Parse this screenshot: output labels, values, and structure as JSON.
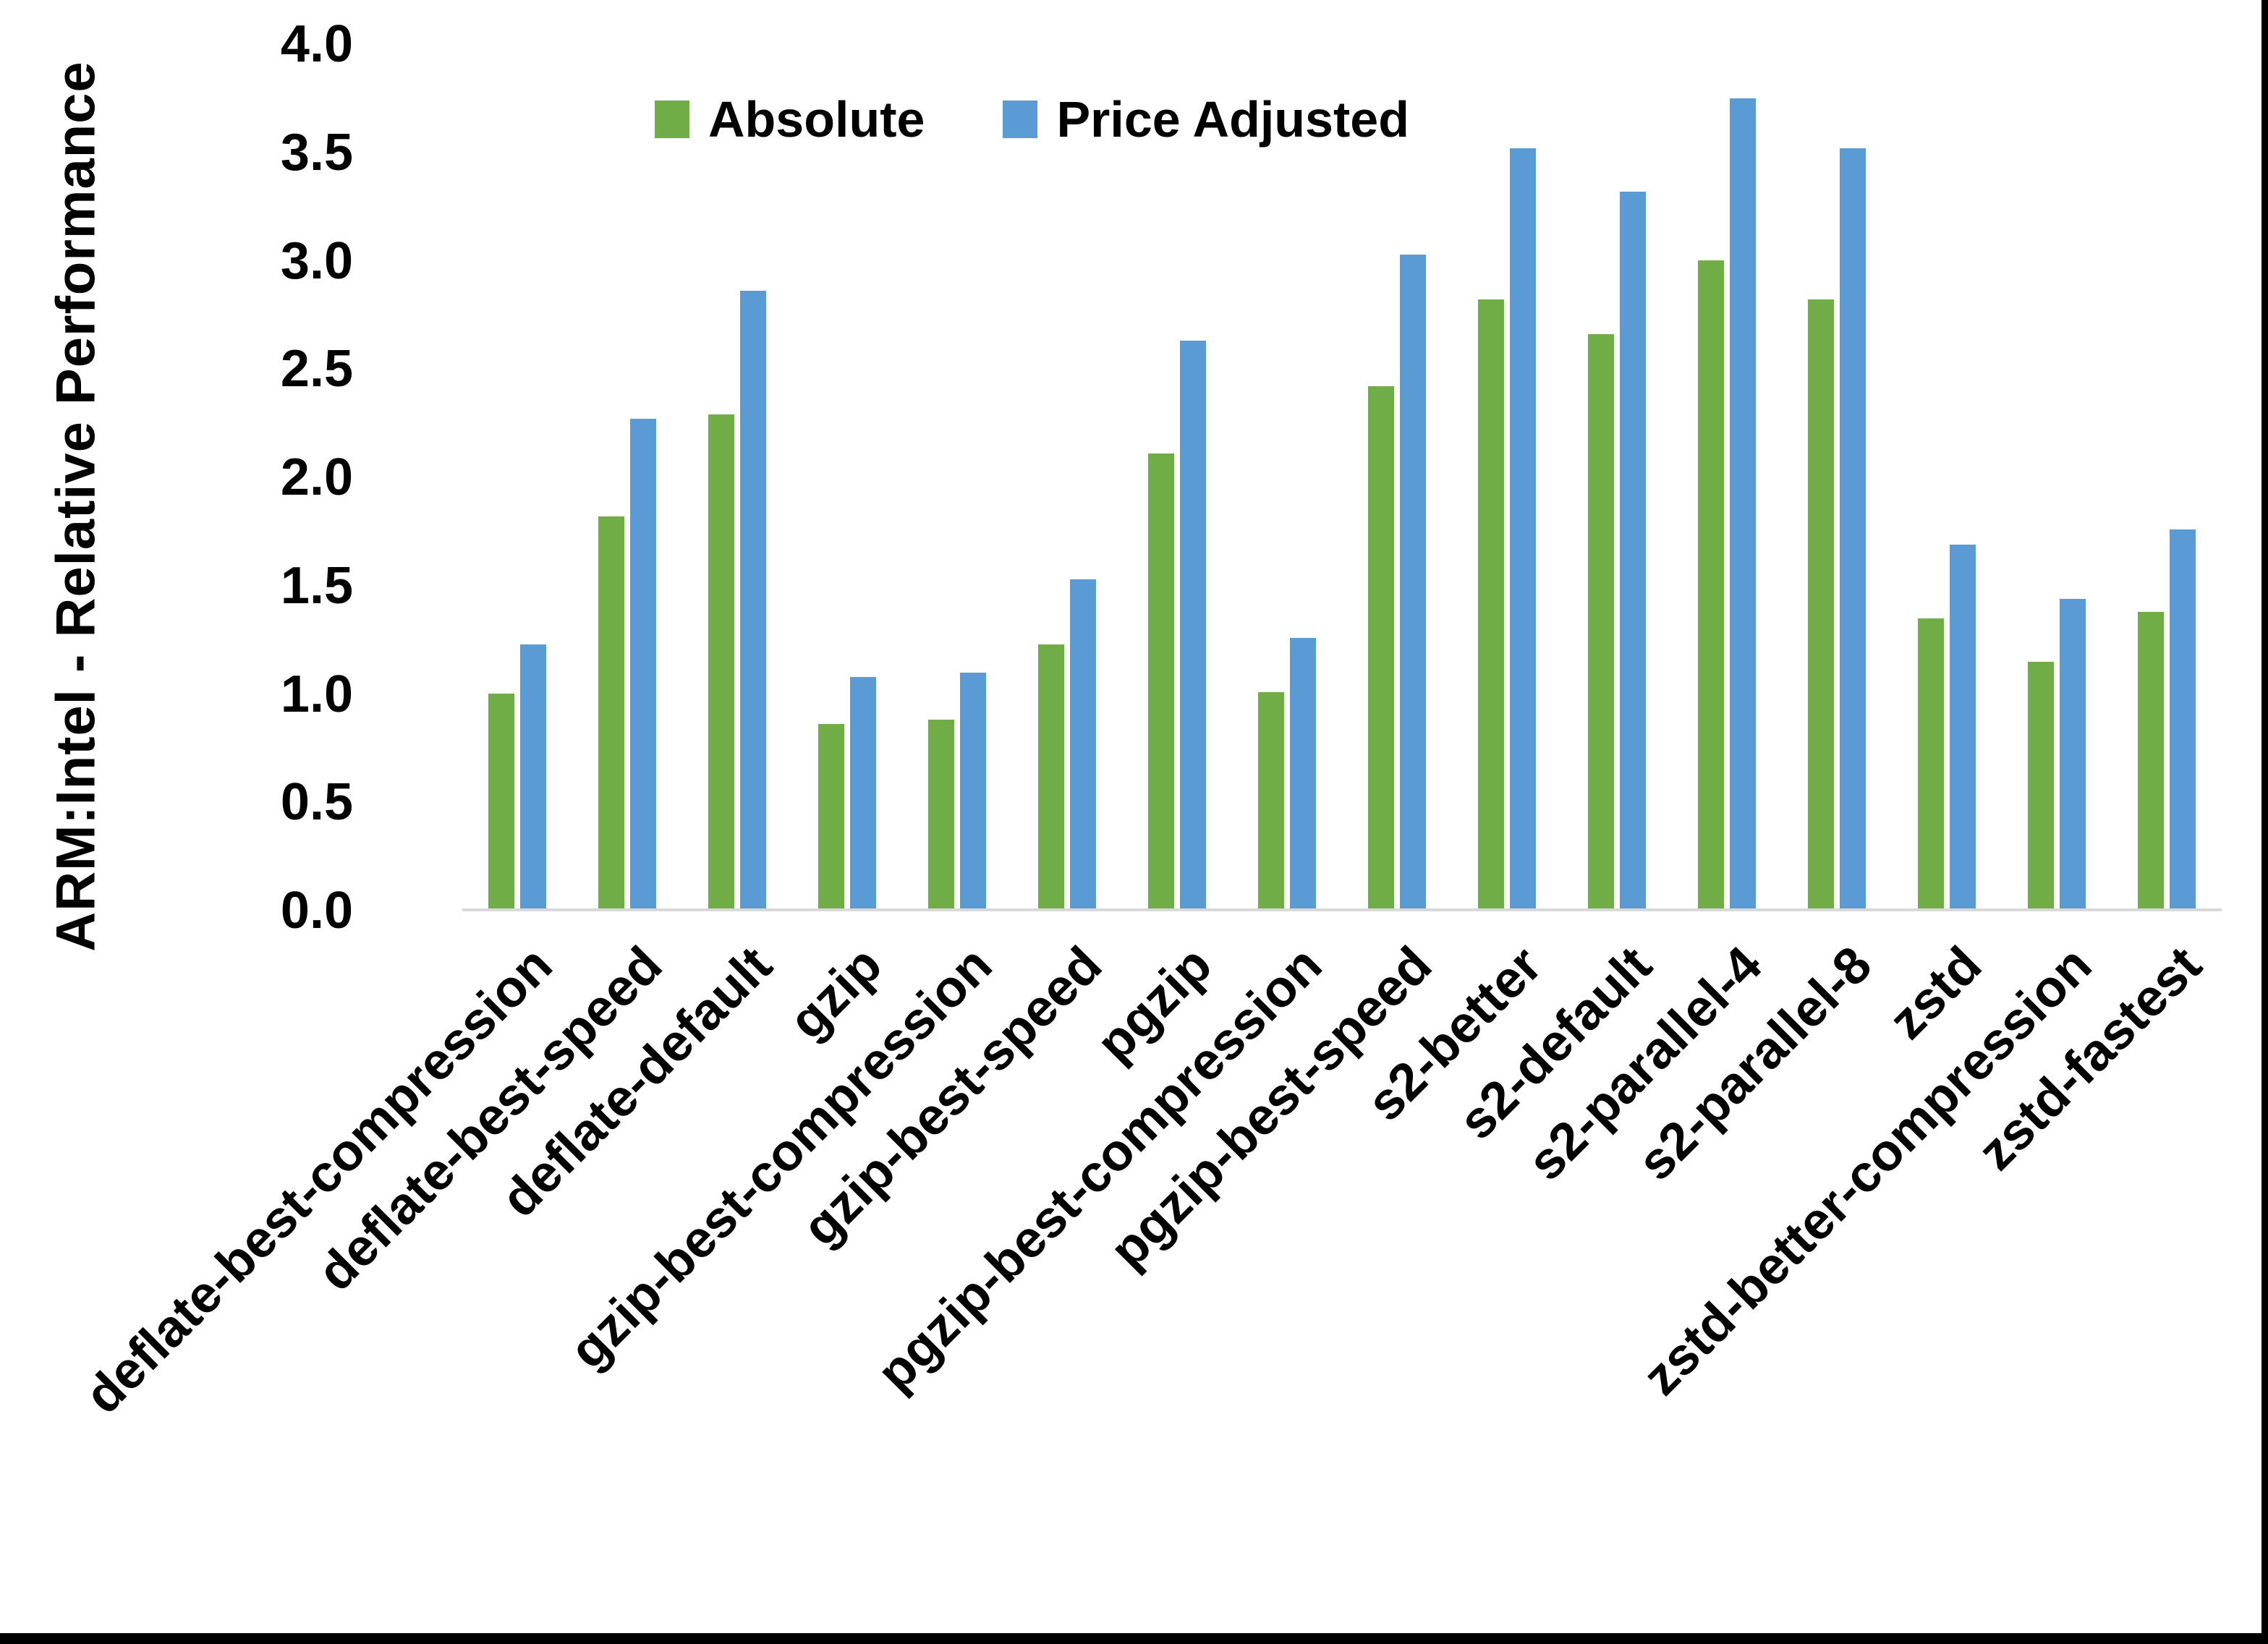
{
  "chart_data": {
    "type": "bar",
    "title": "",
    "xlabel": "",
    "ylabel": "ARM:Intel - Relative Performance",
    "ylim": [
      0.0,
      4.0
    ],
    "ytick_step": 0.5,
    "yticks": [
      "0.0",
      "0.5",
      "1.0",
      "1.5",
      "2.0",
      "2.5",
      "3.0",
      "3.5",
      "4.0"
    ],
    "grid": false,
    "legend_position": "top-center",
    "categories": [
      "deflate-best-compression",
      "deflate-best-speed",
      "deflate-default",
      "gzip",
      "gzip-best-compression",
      "gzip-best-speed",
      "pgzip",
      "pgzip-best-compression",
      "pgzip-best-speed",
      "s2-better",
      "s2-default",
      "s2-parallel-4",
      "s2-parallel-8",
      "zstd",
      "zstd-better-compression",
      "zstd-fastest"
    ],
    "series": [
      {
        "name": "Absolute",
        "color": "#70AD47",
        "values": [
          1.0,
          1.82,
          2.29,
          0.86,
          0.88,
          1.23,
          2.11,
          1.01,
          2.42,
          2.82,
          2.66,
          3.0,
          2.82,
          1.35,
          1.15,
          1.38
        ]
      },
      {
        "name": "Price Adjusted",
        "color": "#5B9BD5",
        "values": [
          1.23,
          2.27,
          2.86,
          1.08,
          1.1,
          1.53,
          2.63,
          1.26,
          3.03,
          3.52,
          3.32,
          3.75,
          3.52,
          1.69,
          1.44,
          1.76
        ]
      }
    ]
  },
  "colors": {
    "background": "#FFFFFF",
    "axis_line": "#D9D9D9",
    "text": "#000000",
    "window_border": "#000000"
  }
}
